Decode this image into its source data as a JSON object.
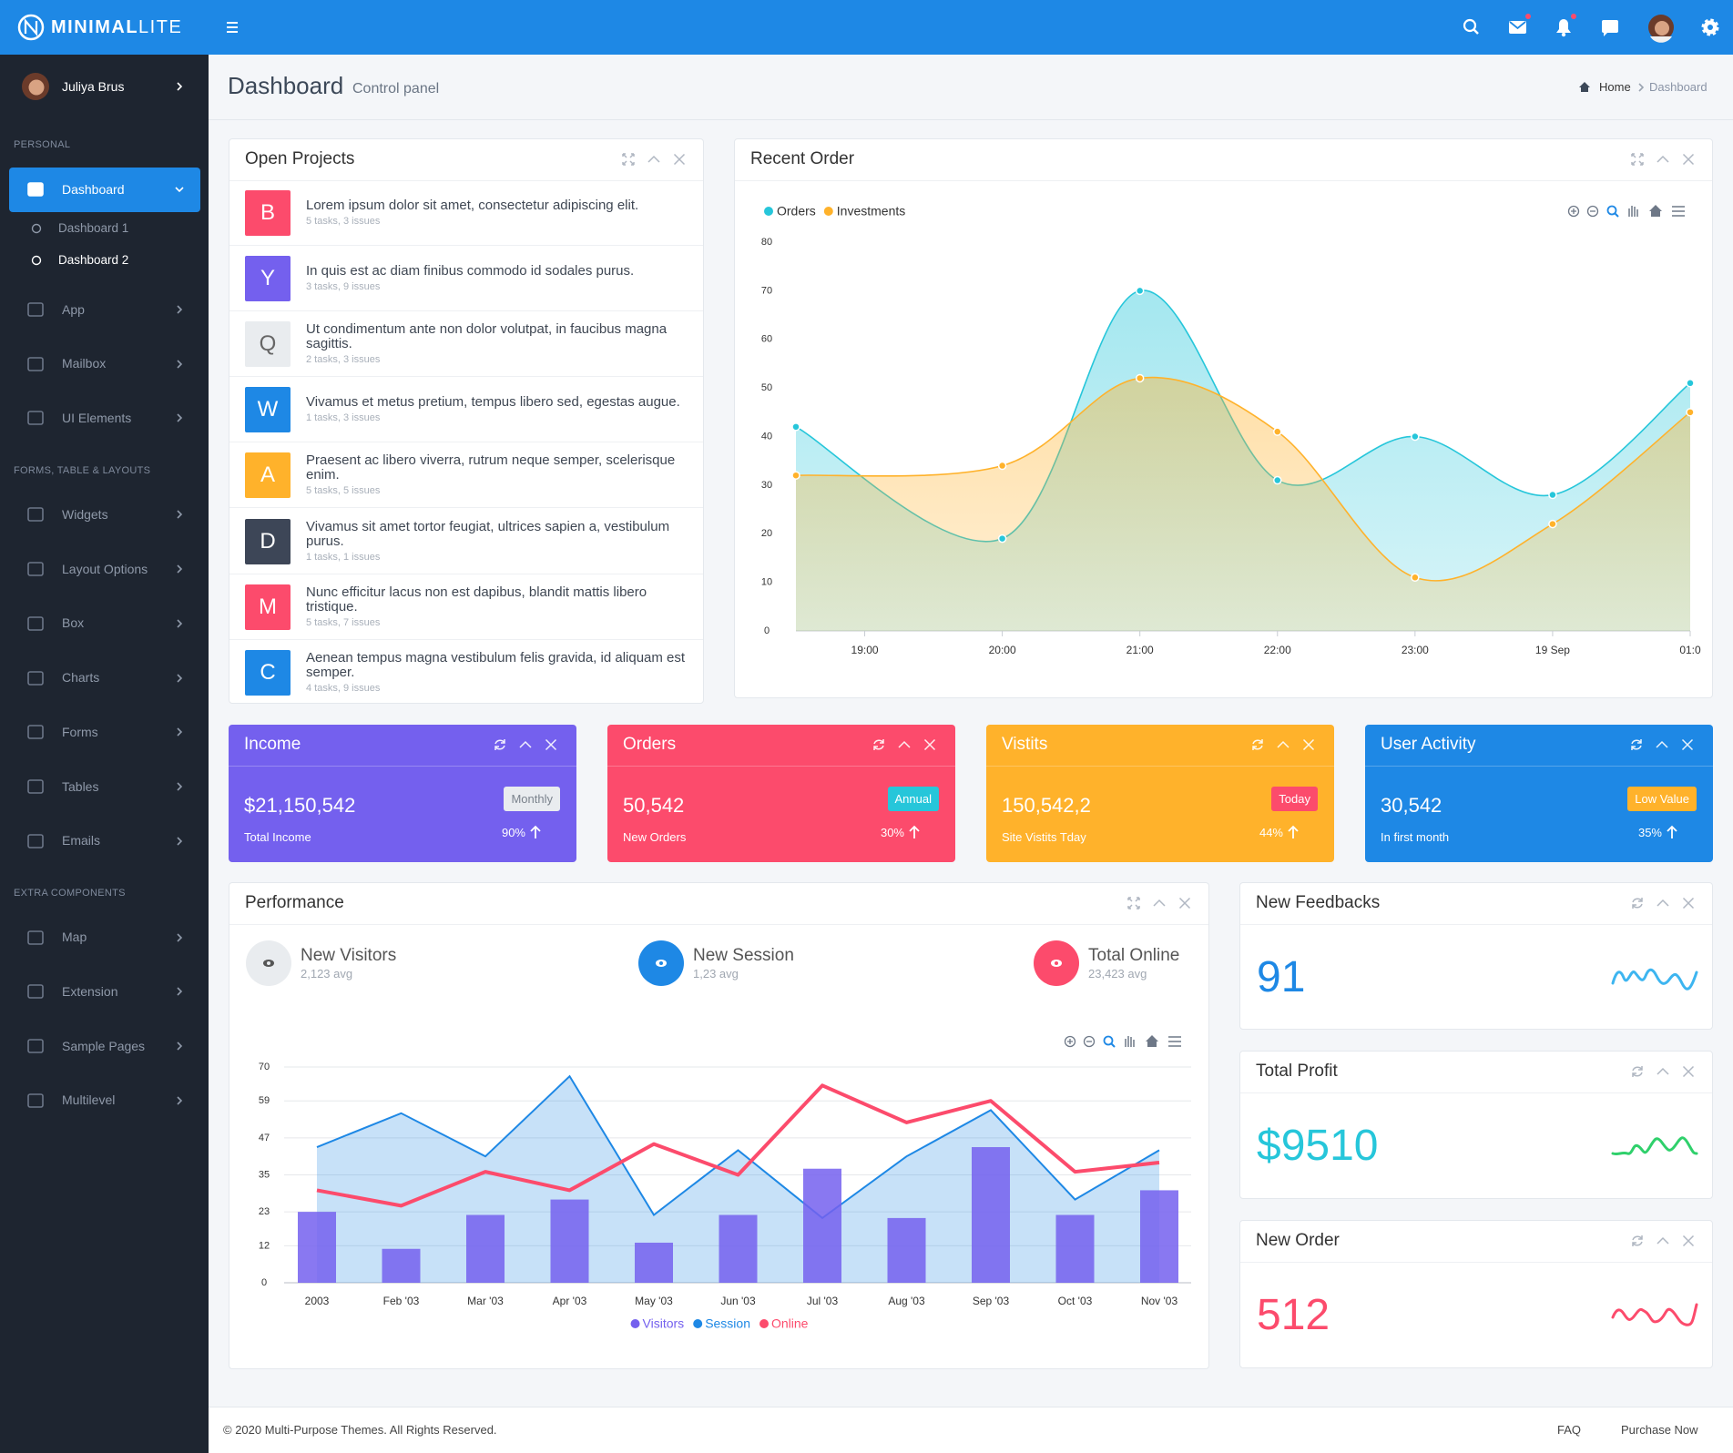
{
  "brand": {
    "name": "MINIMAL",
    "suffix": "LITE"
  },
  "user": {
    "name": "Juliya Brus"
  },
  "sidebar": [
    {
      "title": "PERSONAL",
      "items": [
        {
          "label": "Dashboard",
          "active": true,
          "children": [
            {
              "label": "Dashboard 1"
            },
            {
              "label": "Dashboard 2",
              "active": true
            }
          ]
        },
        {
          "label": "App"
        },
        {
          "label": "Mailbox"
        },
        {
          "label": "UI Elements"
        }
      ]
    },
    {
      "title": "FORMS, TABLE & LAYOUTS",
      "items": [
        {
          "label": "Widgets"
        },
        {
          "label": "Layout Options"
        },
        {
          "label": "Box"
        },
        {
          "label": "Charts"
        },
        {
          "label": "Forms"
        },
        {
          "label": "Tables"
        },
        {
          "label": "Emails"
        }
      ]
    },
    {
      "title": "EXTRA COMPONENTS",
      "items": [
        {
          "label": "Map"
        },
        {
          "label": "Extension"
        },
        {
          "label": "Sample Pages"
        },
        {
          "label": "Multilevel"
        }
      ]
    }
  ],
  "header": {
    "title": "Dashboard",
    "subtitle": "Control panel",
    "breadcrumb": [
      "Home",
      "Dashboard"
    ]
  },
  "open_projects": {
    "title": "Open Projects",
    "items": [
      {
        "letter": "B",
        "color": "#fc4b6c",
        "text": "Lorem ipsum dolor sit amet, consectetur adipiscing elit.",
        "meta": "5 tasks, 3 issues"
      },
      {
        "letter": "Y",
        "color": "#7460ee",
        "text": "In quis est ac diam finibus commodo id sodales purus.",
        "meta": "3 tasks, 9 issues"
      },
      {
        "letter": "Q",
        "color": "#e9ecef",
        "text": "Ut condimentum ante non dolor volutpat, in faucibus magna sagittis.",
        "meta": "2 tasks, 3 issues"
      },
      {
        "letter": "W",
        "color": "#1e88e5",
        "text": "Vivamus et metus pretium, tempus libero sed, egestas augue.",
        "meta": "1 tasks, 3 issues"
      },
      {
        "letter": "A",
        "color": "#ffb22b",
        "text": "Praesent ac libero viverra, rutrum neque semper, scelerisque enim.",
        "meta": "5 tasks, 5 issues"
      },
      {
        "letter": "D",
        "color": "#3d4657",
        "text": "Vivamus sit amet tortor feugiat, ultrices sapien a, vestibulum purus.",
        "meta": "1 tasks, 1 issues"
      },
      {
        "letter": "M",
        "color": "#fc4b6c",
        "text": "Nunc efficitur lacus non est dapibus, blandit mattis libero tristique.",
        "meta": "5 tasks, 7 issues"
      },
      {
        "letter": "C",
        "color": "#1e88e5",
        "text": "Aenean tempus magna vestibulum felis gravida, id aliquam est semper.",
        "meta": "4 tasks, 9 issues"
      }
    ]
  },
  "recent_order": {
    "title": "Recent Order",
    "chart": {
      "type": "area",
      "x": [
        18.5,
        20,
        21,
        22,
        23,
        24,
        25
      ],
      "xlim": [
        18.5,
        25
      ],
      "xticks": [
        {
          "value": 19,
          "label": "19:00"
        },
        {
          "value": 20,
          "label": "20:00"
        },
        {
          "value": 21,
          "label": "21:00"
        },
        {
          "value": 22,
          "label": "22:00"
        },
        {
          "value": 23,
          "label": "23:00"
        },
        {
          "value": 24,
          "label": "19 Sep"
        },
        {
          "value": 25,
          "label": "01:0"
        }
      ],
      "ylim": [
        0,
        80
      ],
      "yticks": [
        0,
        10,
        20,
        30,
        40,
        50,
        60,
        70,
        80
      ],
      "legend": "top-left",
      "series": [
        {
          "name": "Orders",
          "color": "#26c6da",
          "values": [
            42,
            19,
            70,
            31,
            40,
            28,
            51
          ]
        },
        {
          "name": "Investments",
          "color": "#ffb22b",
          "values": [
            32,
            34,
            52,
            41,
            11,
            22,
            45
          ]
        }
      ]
    }
  },
  "stats": [
    {
      "title": "Income",
      "value": "$21,150,542",
      "label": "Total Income",
      "badge": "Monthly",
      "percent": "90%",
      "color": "#7460ee",
      "badge_color": "#e9ecef"
    },
    {
      "title": "Orders",
      "value": "50,542",
      "label": "New Orders",
      "badge": "Annual",
      "percent": "30%",
      "color": "#fc4b6c",
      "badge_color": "#26c6da"
    },
    {
      "title": "Vistits",
      "value": "150,542,2",
      "label": "Site Vistits Tday",
      "badge": "Today",
      "percent": "44%",
      "color": "#ffb22b",
      "badge_color": "#fc4b6c"
    },
    {
      "title": "User Activity",
      "value": "30,542",
      "label": "In first month",
      "badge": "Low Value",
      "percent": "35%",
      "color": "#1e88e5",
      "badge_color": "#ffb22b"
    }
  ],
  "performance": {
    "title": "Performance",
    "metrics": [
      {
        "name": "New Visitors",
        "avg": "2,123 avg",
        "color": "#e9ecef"
      },
      {
        "name": "New Session",
        "avg": "1,23 avg",
        "color": "#1e88e5"
      },
      {
        "name": "Total Online",
        "avg": "23,423 avg",
        "color": "#fc4b6c"
      }
    ],
    "chart": {
      "type": "combo",
      "categories": [
        "2003",
        "Feb '03",
        "Mar '03",
        "Apr '03",
        "May '03",
        "Jun '03",
        "Jul '03",
        "Aug '03",
        "Sep '03",
        "Oct '03",
        "Nov '03"
      ],
      "ylim": [
        0,
        70
      ],
      "yticks": [
        0,
        12,
        23,
        35,
        47,
        59,
        70
      ],
      "grid": true,
      "legend": "bottom",
      "series": [
        {
          "name": "Visitors",
          "type": "bar",
          "color": "#7460ee",
          "values": [
            23,
            11,
            22,
            27,
            13,
            22,
            37,
            21,
            44,
            22,
            30
          ]
        },
        {
          "name": "Session",
          "type": "area",
          "color": "#1e88e5",
          "values": [
            44,
            55,
            41,
            67,
            22,
            43,
            21,
            41,
            56,
            27,
            43
          ]
        },
        {
          "name": "Online",
          "type": "line",
          "color": "#fc4b6c",
          "values": [
            30,
            25,
            36,
            30,
            45,
            35,
            64,
            52,
            59,
            36,
            39
          ]
        }
      ]
    }
  },
  "widgets": [
    {
      "title": "New Feedbacks",
      "value": "91",
      "color": "#1e88e5",
      "spark_color": "#3db5f0"
    },
    {
      "title": "Total Profit",
      "value": "$9510",
      "color": "#26c6da",
      "spark_color": "#2fd06b"
    },
    {
      "title": "New Order",
      "value": "512",
      "color": "#fc4b6c",
      "spark_color": "#fc4b6c"
    }
  ],
  "footer": {
    "copyright": "© 2020 Multi-Purpose Themes. All Rights Reserved.",
    "links": [
      "FAQ",
      "Purchase Now"
    ]
  }
}
